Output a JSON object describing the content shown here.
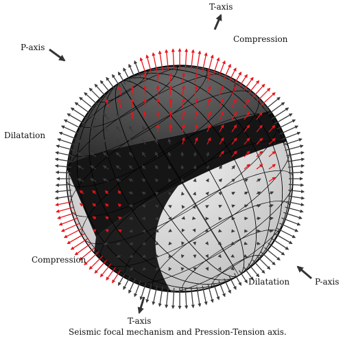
{
  "labels": {
    "t_axis_top": "T-axis",
    "t_axis_bottom": "T-axis",
    "p_axis_left": "P-axis",
    "p_axis_right": "P-axis",
    "compression_top": "Compression",
    "compression_bottom": "Compression",
    "dilatation_left": "Dilatation",
    "dilatation_right": "Dilatation"
  },
  "caption": "Seismic focal mechanism and Pression-Tension axis.",
  "colors": {
    "compression_arrow": "#e8141a",
    "dilatation_arrow": "#3a3a3a",
    "dark_quadrant": "#151515",
    "mid_quadrant": "#4a4a4a",
    "light_quadrant": "#e2e2e2",
    "mesh_line": "#000000"
  }
}
